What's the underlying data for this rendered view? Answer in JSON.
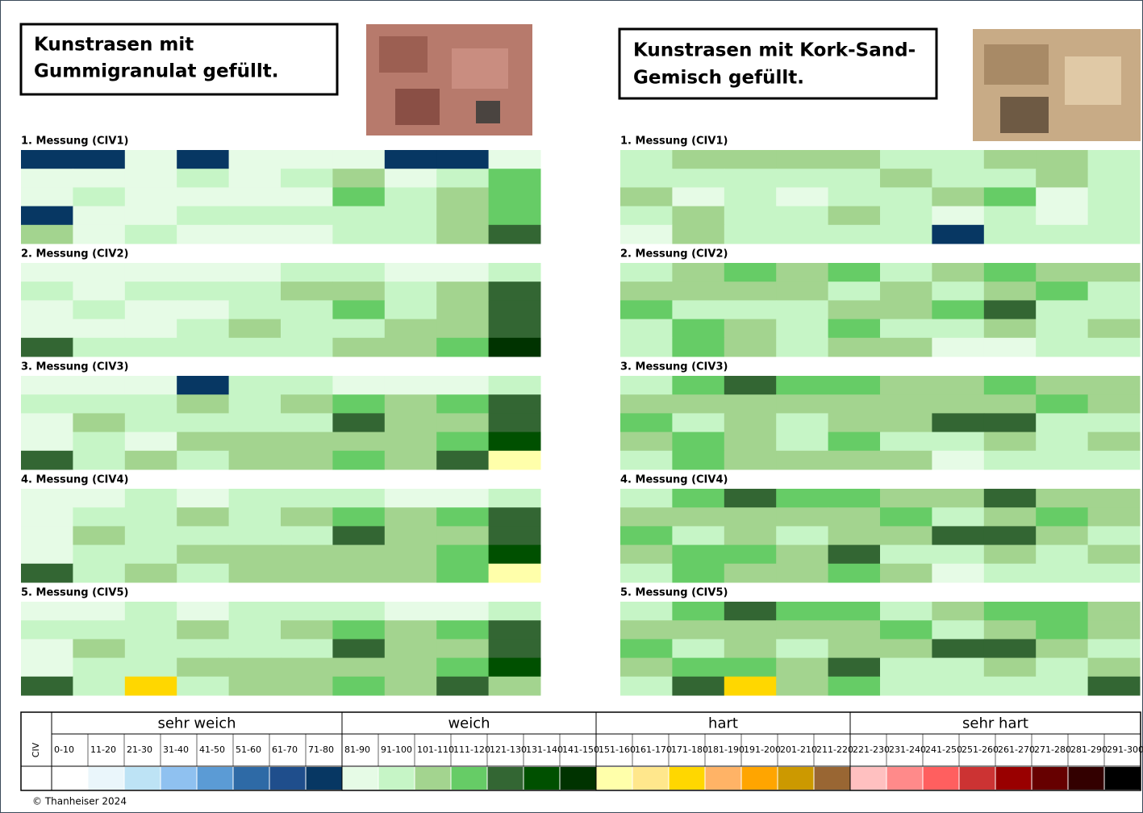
{
  "left": {
    "title": [
      "Kunstrasen mit",
      "Gummigranulat gefüllt."
    ],
    "panels": [
      {
        "label": "1. Messung (CIV1)",
        "cells": [
          [
            "#073763",
            "#073763",
            "#e6fbe6",
            "#073763",
            "#e6fbe6",
            "#e6fbe6",
            "#e6fbe6",
            "#073763",
            "#073763",
            "#e6fbe6"
          ],
          [
            "#e6fbe6",
            "#e6fbe6",
            "#e6fbe6",
            "#c6f5c6",
            "#e6fbe6",
            "#c6f5c6",
            "#a3d48f",
            "#e6fbe6",
            "#c6f5c6",
            "#66cc66"
          ],
          [
            "#e6fbe6",
            "#c6f5c6",
            "#e6fbe6",
            "#e6fbe6",
            "#e6fbe6",
            "#e6fbe6",
            "#66cc66",
            "#c6f5c6",
            "#a3d48f",
            "#66cc66"
          ],
          [
            "#073763",
            "#e6fbe6",
            "#e6fbe6",
            "#c6f5c6",
            "#c6f5c6",
            "#c6f5c6",
            "#c6f5c6",
            "#c6f5c6",
            "#a3d48f",
            "#66cc66"
          ],
          [
            "#a3d48f",
            "#e6fbe6",
            "#c6f5c6",
            "#e6fbe6",
            "#e6fbe6",
            "#e6fbe6",
            "#c6f5c6",
            "#c6f5c6",
            "#a3d48f",
            "#336633"
          ]
        ]
      },
      {
        "label": "2. Messung (CIV2)",
        "cells": [
          [
            "#e6fbe6",
            "#e6fbe6",
            "#e6fbe6",
            "#e6fbe6",
            "#e6fbe6",
            "#c6f5c6",
            "#c6f5c6",
            "#e6fbe6",
            "#e6fbe6",
            "#c6f5c6"
          ],
          [
            "#c6f5c6",
            "#e6fbe6",
            "#c6f5c6",
            "#c6f5c6",
            "#c6f5c6",
            "#a3d48f",
            "#a3d48f",
            "#c6f5c6",
            "#a3d48f",
            "#336633"
          ],
          [
            "#e6fbe6",
            "#c6f5c6",
            "#e6fbe6",
            "#e6fbe6",
            "#c6f5c6",
            "#c6f5c6",
            "#66cc66",
            "#c6f5c6",
            "#a3d48f",
            "#336633"
          ],
          [
            "#e6fbe6",
            "#e6fbe6",
            "#e6fbe6",
            "#c6f5c6",
            "#a3d48f",
            "#c6f5c6",
            "#c6f5c6",
            "#a3d48f",
            "#a3d48f",
            "#336633"
          ],
          [
            "#336633",
            "#c6f5c6",
            "#c6f5c6",
            "#c6f5c6",
            "#c6f5c6",
            "#c6f5c6",
            "#a3d48f",
            "#a3d48f",
            "#66cc66",
            "#003300"
          ]
        ]
      },
      {
        "label": "3. Messung (CIV3)",
        "cells": [
          [
            "#e6fbe6",
            "#e6fbe6",
            "#e6fbe6",
            "#073763",
            "#c6f5c6",
            "#c6f5c6",
            "#e6fbe6",
            "#e6fbe6",
            "#e6fbe6",
            "#c6f5c6"
          ],
          [
            "#c6f5c6",
            "#c6f5c6",
            "#c6f5c6",
            "#a3d48f",
            "#c6f5c6",
            "#a3d48f",
            "#66cc66",
            "#a3d48f",
            "#66cc66",
            "#336633"
          ],
          [
            "#e6fbe6",
            "#a3d48f",
            "#c6f5c6",
            "#c6f5c6",
            "#c6f5c6",
            "#c6f5c6",
            "#336633",
            "#a3d48f",
            "#a3d48f",
            "#336633"
          ],
          [
            "#e6fbe6",
            "#c6f5c6",
            "#e6fbe6",
            "#a3d48f",
            "#a3d48f",
            "#a3d48f",
            "#a3d48f",
            "#a3d48f",
            "#66cc66",
            "#005000"
          ],
          [
            "#336633",
            "#c6f5c6",
            "#a3d48f",
            "#c6f5c6",
            "#a3d48f",
            "#a3d48f",
            "#66cc66",
            "#a3d48f",
            "#336633",
            "#ffffaa"
          ]
        ]
      },
      {
        "label": "4. Messung (CIV4)",
        "cells": [
          [
            "#e6fbe6",
            "#e6fbe6",
            "#c6f5c6",
            "#e6fbe6",
            "#c6f5c6",
            "#c6f5c6",
            "#c6f5c6",
            "#e6fbe6",
            "#e6fbe6",
            "#c6f5c6"
          ],
          [
            "#e6fbe6",
            "#c6f5c6",
            "#c6f5c6",
            "#a3d48f",
            "#c6f5c6",
            "#a3d48f",
            "#66cc66",
            "#a3d48f",
            "#66cc66",
            "#336633"
          ],
          [
            "#e6fbe6",
            "#a3d48f",
            "#c6f5c6",
            "#c6f5c6",
            "#c6f5c6",
            "#c6f5c6",
            "#336633",
            "#a3d48f",
            "#a3d48f",
            "#336633"
          ],
          [
            "#e6fbe6",
            "#c6f5c6",
            "#c6f5c6",
            "#a3d48f",
            "#a3d48f",
            "#a3d48f",
            "#a3d48f",
            "#a3d48f",
            "#66cc66",
            "#005000"
          ],
          [
            "#336633",
            "#c6f5c6",
            "#a3d48f",
            "#c6f5c6",
            "#a3d48f",
            "#a3d48f",
            "#a3d48f",
            "#a3d48f",
            "#66cc66",
            "#ffffaa"
          ]
        ]
      },
      {
        "label": "5. Messung (CIV5)",
        "cells": [
          [
            "#e6fbe6",
            "#e6fbe6",
            "#c6f5c6",
            "#e6fbe6",
            "#c6f5c6",
            "#c6f5c6",
            "#c6f5c6",
            "#e6fbe6",
            "#e6fbe6",
            "#c6f5c6"
          ],
          [
            "#c6f5c6",
            "#c6f5c6",
            "#c6f5c6",
            "#a3d48f",
            "#c6f5c6",
            "#a3d48f",
            "#66cc66",
            "#a3d48f",
            "#66cc66",
            "#336633"
          ],
          [
            "#e6fbe6",
            "#a3d48f",
            "#c6f5c6",
            "#c6f5c6",
            "#c6f5c6",
            "#c6f5c6",
            "#336633",
            "#a3d48f",
            "#a3d48f",
            "#336633"
          ],
          [
            "#e6fbe6",
            "#c6f5c6",
            "#c6f5c6",
            "#a3d48f",
            "#a3d48f",
            "#a3d48f",
            "#a3d48f",
            "#a3d48f",
            "#66cc66",
            "#005000"
          ],
          [
            "#336633",
            "#c6f5c6",
            "#ffd700",
            "#c6f5c6",
            "#a3d48f",
            "#a3d48f",
            "#66cc66",
            "#a3d48f",
            "#336633",
            "#a3d48f"
          ]
        ]
      }
    ]
  },
  "right": {
    "title": [
      "Kunstrasen mit Kork-Sand-",
      "Gemisch gefüllt."
    ],
    "panels": [
      {
        "label": "1. Messung (CIV1)",
        "cells": [
          [
            "#c6f5c6",
            "#a3d48f",
            "#a3d48f",
            "#a3d48f",
            "#a3d48f",
            "#c6f5c6",
            "#c6f5c6",
            "#a3d48f",
            "#a3d48f",
            "#c6f5c6"
          ],
          [
            "#c6f5c6",
            "#c6f5c6",
            "#c6f5c6",
            "#c6f5c6",
            "#c6f5c6",
            "#a3d48f",
            "#c6f5c6",
            "#c6f5c6",
            "#a3d48f",
            "#c6f5c6"
          ],
          [
            "#a3d48f",
            "#e6fbe6",
            "#c6f5c6",
            "#e6fbe6",
            "#c6f5c6",
            "#c6f5c6",
            "#a3d48f",
            "#66cc66",
            "#e6fbe6",
            "#c6f5c6"
          ],
          [
            "#c6f5c6",
            "#a3d48f",
            "#c6f5c6",
            "#c6f5c6",
            "#a3d48f",
            "#c6f5c6",
            "#e6fbe6",
            "#c6f5c6",
            "#e6fbe6",
            "#c6f5c6"
          ],
          [
            "#e6fbe6",
            "#a3d48f",
            "#c6f5c6",
            "#c6f5c6",
            "#c6f5c6",
            "#c6f5c6",
            "#073763",
            "#c6f5c6",
            "#c6f5c6",
            "#c6f5c6"
          ]
        ]
      },
      {
        "label": "2. Messung (CIV2)",
        "cells": [
          [
            "#c6f5c6",
            "#a3d48f",
            "#66cc66",
            "#a3d48f",
            "#66cc66",
            "#c6f5c6",
            "#a3d48f",
            "#66cc66",
            "#a3d48f",
            "#a3d48f"
          ],
          [
            "#a3d48f",
            "#a3d48f",
            "#a3d48f",
            "#a3d48f",
            "#c6f5c6",
            "#a3d48f",
            "#c6f5c6",
            "#a3d48f",
            "#66cc66",
            "#c6f5c6"
          ],
          [
            "#66cc66",
            "#c6f5c6",
            "#c6f5c6",
            "#c6f5c6",
            "#a3d48f",
            "#a3d48f",
            "#66cc66",
            "#336633",
            "#c6f5c6",
            "#c6f5c6"
          ],
          [
            "#c6f5c6",
            "#66cc66",
            "#a3d48f",
            "#c6f5c6",
            "#66cc66",
            "#c6f5c6",
            "#c6f5c6",
            "#a3d48f",
            "#c6f5c6",
            "#a3d48f"
          ],
          [
            "#c6f5c6",
            "#66cc66",
            "#a3d48f",
            "#c6f5c6",
            "#a3d48f",
            "#a3d48f",
            "#e6fbe6",
            "#e6fbe6",
            "#c6f5c6",
            "#c6f5c6"
          ]
        ]
      },
      {
        "label": "3. Messung (CIV3)",
        "cells": [
          [
            "#c6f5c6",
            "#66cc66",
            "#336633",
            "#66cc66",
            "#66cc66",
            "#a3d48f",
            "#a3d48f",
            "#66cc66",
            "#a3d48f",
            "#a3d48f"
          ],
          [
            "#a3d48f",
            "#a3d48f",
            "#a3d48f",
            "#a3d48f",
            "#a3d48f",
            "#a3d48f",
            "#a3d48f",
            "#a3d48f",
            "#66cc66",
            "#a3d48f"
          ],
          [
            "#66cc66",
            "#c6f5c6",
            "#a3d48f",
            "#c6f5c6",
            "#a3d48f",
            "#a3d48f",
            "#336633",
            "#336633",
            "#c6f5c6",
            "#c6f5c6"
          ],
          [
            "#a3d48f",
            "#66cc66",
            "#a3d48f",
            "#c6f5c6",
            "#66cc66",
            "#c6f5c6",
            "#c6f5c6",
            "#a3d48f",
            "#c6f5c6",
            "#a3d48f"
          ],
          [
            "#c6f5c6",
            "#66cc66",
            "#a3d48f",
            "#a3d48f",
            "#a3d48f",
            "#a3d48f",
            "#e6fbe6",
            "#c6f5c6",
            "#c6f5c6",
            "#c6f5c6"
          ]
        ]
      },
      {
        "label": "4. Messung (CIV4)",
        "cells": [
          [
            "#c6f5c6",
            "#66cc66",
            "#336633",
            "#66cc66",
            "#66cc66",
            "#a3d48f",
            "#a3d48f",
            "#336633",
            "#a3d48f",
            "#a3d48f"
          ],
          [
            "#a3d48f",
            "#a3d48f",
            "#a3d48f",
            "#a3d48f",
            "#a3d48f",
            "#66cc66",
            "#c6f5c6",
            "#a3d48f",
            "#66cc66",
            "#a3d48f"
          ],
          [
            "#66cc66",
            "#c6f5c6",
            "#a3d48f",
            "#c6f5c6",
            "#a3d48f",
            "#a3d48f",
            "#336633",
            "#336633",
            "#a3d48f",
            "#c6f5c6"
          ],
          [
            "#a3d48f",
            "#66cc66",
            "#66cc66",
            "#a3d48f",
            "#336633",
            "#c6f5c6",
            "#c6f5c6",
            "#a3d48f",
            "#c6f5c6",
            "#a3d48f"
          ],
          [
            "#c6f5c6",
            "#66cc66",
            "#a3d48f",
            "#a3d48f",
            "#66cc66",
            "#a3d48f",
            "#e6fbe6",
            "#c6f5c6",
            "#c6f5c6",
            "#c6f5c6"
          ]
        ]
      },
      {
        "label": "5. Messung (CIV5)",
        "cells": [
          [
            "#c6f5c6",
            "#66cc66",
            "#336633",
            "#66cc66",
            "#66cc66",
            "#c6f5c6",
            "#a3d48f",
            "#66cc66",
            "#66cc66",
            "#a3d48f"
          ],
          [
            "#a3d48f",
            "#a3d48f",
            "#a3d48f",
            "#a3d48f",
            "#a3d48f",
            "#66cc66",
            "#c6f5c6",
            "#a3d48f",
            "#66cc66",
            "#a3d48f"
          ],
          [
            "#66cc66",
            "#c6f5c6",
            "#a3d48f",
            "#c6f5c6",
            "#a3d48f",
            "#a3d48f",
            "#336633",
            "#336633",
            "#a3d48f",
            "#c6f5c6"
          ],
          [
            "#a3d48f",
            "#66cc66",
            "#66cc66",
            "#a3d48f",
            "#336633",
            "#c6f5c6",
            "#c6f5c6",
            "#a3d48f",
            "#c6f5c6",
            "#a3d48f"
          ],
          [
            "#c6f5c6",
            "#336633",
            "#ffd700",
            "#a3d48f",
            "#66cc66",
            "#c6f5c6",
            "#c6f5c6",
            "#c6f5c6",
            "#c6f5c6",
            "#336633"
          ]
        ]
      }
    ]
  },
  "legend": {
    "axis_label": "CIV",
    "groups": [
      {
        "label": "sehr weich",
        "ranges": [
          {
            "label": "0-10",
            "color": "#ffffff"
          },
          {
            "label": "11-20",
            "color": "#eaf6fb"
          },
          {
            "label": "21-30",
            "color": "#bde3f5"
          },
          {
            "label": "31-40",
            "color": "#8fc1f0"
          },
          {
            "label": "41-50",
            "color": "#5b9bd5"
          },
          {
            "label": "51-60",
            "color": "#2e6aa6"
          },
          {
            "label": "61-70",
            "color": "#1f4e8c"
          },
          {
            "label": "71-80",
            "color": "#073763"
          }
        ]
      },
      {
        "label": "weich",
        "ranges": [
          {
            "label": "81-90",
            "color": "#e6fbe6"
          },
          {
            "label": "91-100",
            "color": "#c6f5c6"
          },
          {
            "label": "101-110",
            "color": "#a3d48f"
          },
          {
            "label": "111-120",
            "color": "#66cc66"
          },
          {
            "label": "121-130",
            "color": "#336633"
          },
          {
            "label": "131-140",
            "color": "#005000"
          },
          {
            "label": "141-150",
            "color": "#003300"
          }
        ]
      },
      {
        "label": "hart",
        "ranges": [
          {
            "label": "151-160",
            "color": "#ffffaa"
          },
          {
            "label": "161-170",
            "color": "#ffe78c"
          },
          {
            "label": "171-180",
            "color": "#ffd700"
          },
          {
            "label": "181-190",
            "color": "#ffb366"
          },
          {
            "label": "191-200",
            "color": "#ffa500"
          },
          {
            "label": "201-210",
            "color": "#cc9900"
          },
          {
            "label": "211-220",
            "color": "#996633"
          }
        ]
      },
      {
        "label": "sehr hart",
        "ranges": [
          {
            "label": "221-230",
            "color": "#ffc0c0"
          },
          {
            "label": "231-240",
            "color": "#ff8a8a"
          },
          {
            "label": "241-250",
            "color": "#ff5f5f"
          },
          {
            "label": "251-260",
            "color": "#cc3333"
          },
          {
            "label": "261-270",
            "color": "#990000"
          },
          {
            "label": "271-280",
            "color": "#660000"
          },
          {
            "label": "281-290",
            "color": "#330000"
          },
          {
            "label": "291-300",
            "color": "#000000"
          }
        ]
      }
    ]
  },
  "footer": "© Thanheiser 2024"
}
